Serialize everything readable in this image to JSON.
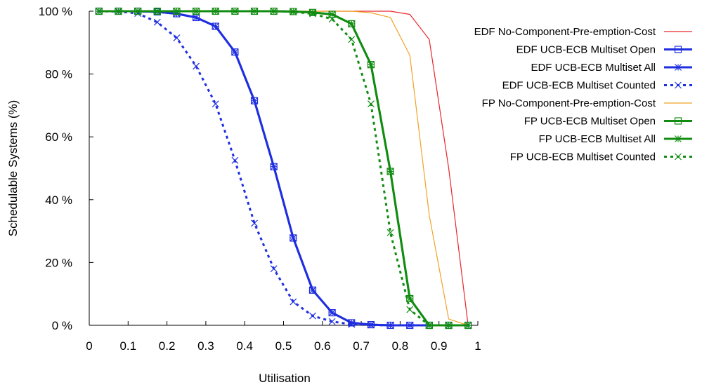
{
  "chart_data": {
    "type": "line",
    "xlabel": "Utilisation",
    "ylabel": "Schedulable Systems (%)",
    "xlim": [
      0,
      1
    ],
    "ylim": [
      0,
      100
    ],
    "x_ticks": [
      "0",
      "0.1",
      "0.2",
      "0.3",
      "0.4",
      "0.5",
      "0.6",
      "0.7",
      "0.8",
      "0.9",
      "1"
    ],
    "y_ticks": [
      "0 %",
      "20 %",
      "40 %",
      "60 %",
      "80 %",
      "100 %"
    ],
    "grid": false,
    "legend_position": "top-right",
    "x": [
      0.025,
      0.075,
      0.125,
      0.175,
      0.225,
      0.275,
      0.325,
      0.375,
      0.425,
      0.475,
      0.525,
      0.575,
      0.625,
      0.675,
      0.725,
      0.775,
      0.825,
      0.875,
      0.925,
      0.975
    ],
    "series": [
      {
        "name": "EDF No-Component-Pre-emption-Cost",
        "color": "#e8262b",
        "style": "thin",
        "marker": "none",
        "values": [
          100,
          100,
          100,
          100,
          100,
          100,
          100,
          100,
          100,
          100,
          100,
          100,
          100,
          100,
          100,
          100,
          99,
          91,
          50,
          0
        ]
      },
      {
        "name": "EDF UCB-ECB Multiset Open",
        "color": "#1f2ee0",
        "style": "solid",
        "marker": "square",
        "values": [
          100,
          100,
          100,
          99.8,
          99.2,
          98,
          95.2,
          87,
          71.5,
          50.5,
          27.8,
          11.2,
          4,
          0.8,
          0.2,
          0,
          0,
          0,
          0,
          0
        ]
      },
      {
        "name": "EDF UCB-ECB Multiset All",
        "color": "#1f2ee0",
        "style": "solid",
        "marker": "star",
        "values": [
          100,
          100,
          100,
          99.8,
          99.2,
          98,
          95.2,
          87,
          71.5,
          50.5,
          27.8,
          11.2,
          4,
          0.8,
          0.2,
          0,
          0,
          0,
          0,
          0
        ]
      },
      {
        "name": "EDF UCB-ECB Multiset Counted",
        "color": "#1f2ee0",
        "style": "dashed",
        "marker": "x",
        "values": [
          100,
          99.9,
          99.3,
          96.5,
          91.5,
          82.5,
          70.5,
          52.5,
          32.5,
          18,
          7.5,
          3,
          1.2,
          0.3,
          0.1,
          0,
          0,
          0,
          0,
          0
        ]
      },
      {
        "name": "FP No-Component-Pre-emption-Cost",
        "color": "#f0a326",
        "style": "thin",
        "marker": "none",
        "values": [
          100,
          100,
          100,
          100,
          100,
          100,
          100,
          100,
          100,
          100,
          100,
          100,
          100,
          100,
          99.5,
          98,
          86,
          35,
          2,
          0
        ]
      },
      {
        "name": "FP UCB-ECB Multiset Open",
        "color": "#118c11",
        "style": "solid",
        "marker": "square",
        "values": [
          100,
          100,
          100,
          100,
          100,
          100,
          100,
          100,
          100,
          100,
          99.9,
          99.6,
          99,
          96,
          83,
          49,
          8.5,
          0,
          0,
          0
        ]
      },
      {
        "name": "FP UCB-ECB Multiset All",
        "color": "#118c11",
        "style": "solid",
        "marker": "star",
        "values": [
          100,
          100,
          100,
          100,
          100,
          100,
          100,
          100,
          100,
          100,
          99.9,
          99.6,
          99,
          96,
          83,
          49,
          8.5,
          0,
          0,
          0
        ]
      },
      {
        "name": "FP UCB-ECB Multiset Counted",
        "color": "#118c11",
        "style": "dashed",
        "marker": "x",
        "values": [
          100,
          100,
          100,
          100,
          100,
          100,
          100,
          100,
          100,
          100,
          99.8,
          99.2,
          97.5,
          91,
          70.5,
          29.5,
          5,
          0,
          0,
          0
        ]
      }
    ]
  }
}
